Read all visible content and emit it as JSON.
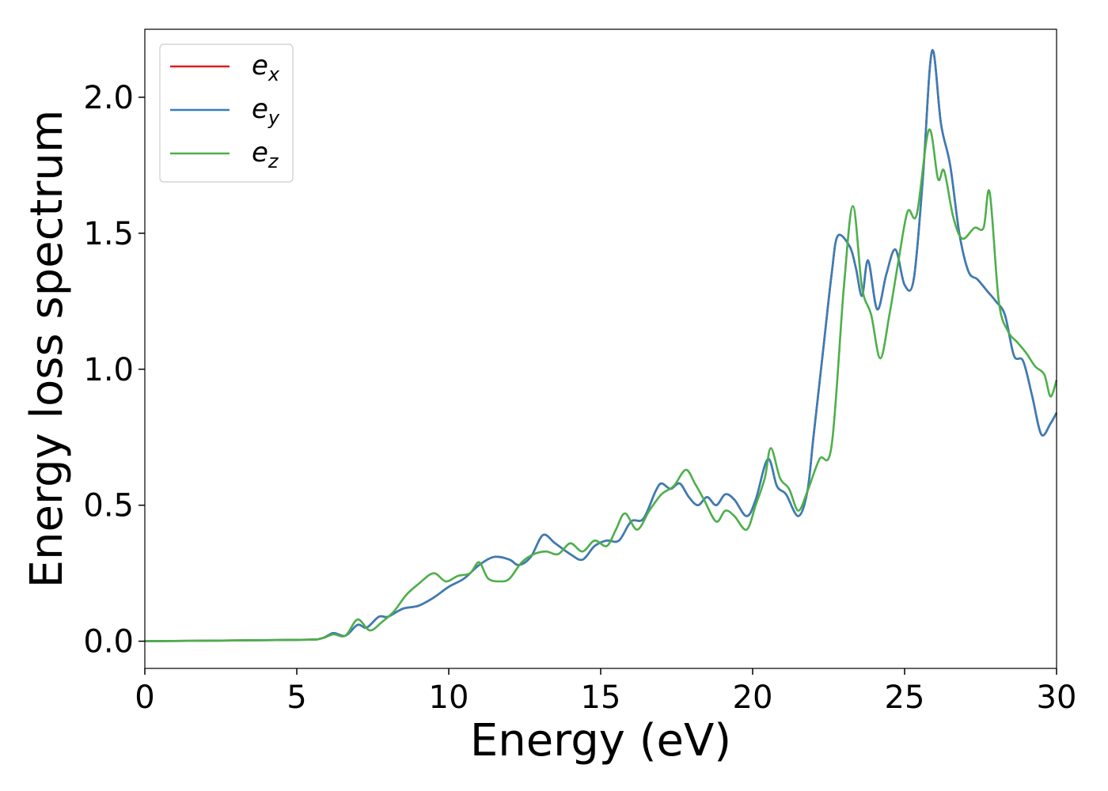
{
  "chart_data": {
    "type": "line",
    "xlabel": "Energy (eV)",
    "ylabel": "Energy loss spectrum",
    "xlim": [
      0,
      30
    ],
    "ylim": [
      -0.1,
      2.25
    ],
    "xticks": [
      "0",
      "5",
      "10",
      "15",
      "20",
      "25",
      "30"
    ],
    "yticks": [
      "0.0",
      "0.5",
      "1.0",
      "1.5",
      "2.0"
    ],
    "grid": false,
    "legend_position": "top-left",
    "series": [
      {
        "name": "e",
        "subscript": "x",
        "color": "#e41a1c",
        "points": [
          [
            0,
            0
          ],
          [
            5,
            0.005
          ],
          [
            5.8,
            0.01
          ],
          [
            6.2,
            0.03
          ],
          [
            6.6,
            0.02
          ],
          [
            7.0,
            0.06
          ],
          [
            7.3,
            0.05
          ],
          [
            7.7,
            0.09
          ],
          [
            8.0,
            0.09
          ],
          [
            8.5,
            0.12
          ],
          [
            9.0,
            0.13
          ],
          [
            9.5,
            0.16
          ],
          [
            10.0,
            0.2
          ],
          [
            10.5,
            0.23
          ],
          [
            11.0,
            0.28
          ],
          [
            11.5,
            0.31
          ],
          [
            12.0,
            0.3
          ],
          [
            12.3,
            0.28
          ],
          [
            12.7,
            0.31
          ],
          [
            13.1,
            0.39
          ],
          [
            13.5,
            0.36
          ],
          [
            14.0,
            0.32
          ],
          [
            14.4,
            0.3
          ],
          [
            14.8,
            0.35
          ],
          [
            15.2,
            0.37
          ],
          [
            15.6,
            0.37
          ],
          [
            16.0,
            0.44
          ],
          [
            16.4,
            0.45
          ],
          [
            16.8,
            0.55
          ],
          [
            17.0,
            0.58
          ],
          [
            17.3,
            0.56
          ],
          [
            17.6,
            0.58
          ],
          [
            17.9,
            0.53
          ],
          [
            18.2,
            0.5
          ],
          [
            18.5,
            0.53
          ],
          [
            18.8,
            0.5
          ],
          [
            19.1,
            0.54
          ],
          [
            19.4,
            0.52
          ],
          [
            19.8,
            0.46
          ],
          [
            20.1,
            0.52
          ],
          [
            20.5,
            0.67
          ],
          [
            20.8,
            0.57
          ],
          [
            21.1,
            0.54
          ],
          [
            21.5,
            0.46
          ],
          [
            21.8,
            0.55
          ],
          [
            22.0,
            0.75
          ],
          [
            22.3,
            1.05
          ],
          [
            22.6,
            1.35
          ],
          [
            22.8,
            1.49
          ],
          [
            23.2,
            1.45
          ],
          [
            23.4,
            1.37
          ],
          [
            23.6,
            1.27
          ],
          [
            23.8,
            1.4
          ],
          [
            24.1,
            1.22
          ],
          [
            24.4,
            1.35
          ],
          [
            24.7,
            1.44
          ],
          [
            25.0,
            1.31
          ],
          [
            25.3,
            1.33
          ],
          [
            25.6,
            1.7
          ],
          [
            25.9,
            2.17
          ],
          [
            26.2,
            1.9
          ],
          [
            26.5,
            1.75
          ],
          [
            26.8,
            1.5
          ],
          [
            27.1,
            1.36
          ],
          [
            27.4,
            1.33
          ],
          [
            27.7,
            1.29
          ],
          [
            28.0,
            1.25
          ],
          [
            28.3,
            1.2
          ],
          [
            28.6,
            1.05
          ],
          [
            28.9,
            1.03
          ],
          [
            29.2,
            0.9
          ],
          [
            29.5,
            0.76
          ],
          [
            29.8,
            0.8
          ],
          [
            30.0,
            0.84
          ]
        ]
      },
      {
        "name": "e",
        "subscript": "y",
        "color": "#377eb8",
        "points": [
          [
            0,
            0
          ],
          [
            5,
            0.005
          ],
          [
            5.8,
            0.01
          ],
          [
            6.2,
            0.03
          ],
          [
            6.6,
            0.02
          ],
          [
            7.0,
            0.06
          ],
          [
            7.3,
            0.05
          ],
          [
            7.7,
            0.09
          ],
          [
            8.0,
            0.09
          ],
          [
            8.5,
            0.12
          ],
          [
            9.0,
            0.13
          ],
          [
            9.5,
            0.16
          ],
          [
            10.0,
            0.2
          ],
          [
            10.5,
            0.23
          ],
          [
            11.0,
            0.28
          ],
          [
            11.5,
            0.31
          ],
          [
            12.0,
            0.3
          ],
          [
            12.3,
            0.28
          ],
          [
            12.7,
            0.31
          ],
          [
            13.1,
            0.39
          ],
          [
            13.5,
            0.36
          ],
          [
            14.0,
            0.32
          ],
          [
            14.4,
            0.3
          ],
          [
            14.8,
            0.35
          ],
          [
            15.2,
            0.37
          ],
          [
            15.6,
            0.37
          ],
          [
            16.0,
            0.44
          ],
          [
            16.4,
            0.45
          ],
          [
            16.8,
            0.55
          ],
          [
            17.0,
            0.58
          ],
          [
            17.3,
            0.56
          ],
          [
            17.6,
            0.58
          ],
          [
            17.9,
            0.53
          ],
          [
            18.2,
            0.5
          ],
          [
            18.5,
            0.53
          ],
          [
            18.8,
            0.5
          ],
          [
            19.1,
            0.54
          ],
          [
            19.4,
            0.52
          ],
          [
            19.8,
            0.46
          ],
          [
            20.1,
            0.52
          ],
          [
            20.5,
            0.67
          ],
          [
            20.8,
            0.57
          ],
          [
            21.1,
            0.54
          ],
          [
            21.5,
            0.46
          ],
          [
            21.8,
            0.55
          ],
          [
            22.0,
            0.75
          ],
          [
            22.3,
            1.05
          ],
          [
            22.6,
            1.35
          ],
          [
            22.8,
            1.49
          ],
          [
            23.2,
            1.45
          ],
          [
            23.4,
            1.37
          ],
          [
            23.6,
            1.27
          ],
          [
            23.8,
            1.4
          ],
          [
            24.1,
            1.22
          ],
          [
            24.4,
            1.35
          ],
          [
            24.7,
            1.44
          ],
          [
            25.0,
            1.31
          ],
          [
            25.3,
            1.33
          ],
          [
            25.6,
            1.7
          ],
          [
            25.9,
            2.17
          ],
          [
            26.2,
            1.9
          ],
          [
            26.5,
            1.75
          ],
          [
            26.8,
            1.5
          ],
          [
            27.1,
            1.36
          ],
          [
            27.4,
            1.33
          ],
          [
            27.7,
            1.29
          ],
          [
            28.0,
            1.25
          ],
          [
            28.3,
            1.2
          ],
          [
            28.6,
            1.05
          ],
          [
            28.9,
            1.03
          ],
          [
            29.2,
            0.9
          ],
          [
            29.5,
            0.76
          ],
          [
            29.8,
            0.8
          ],
          [
            30.0,
            0.84
          ]
        ]
      },
      {
        "name": "e",
        "subscript": "z",
        "color": "#4daf4a",
        "points": [
          [
            0,
            0
          ],
          [
            5,
            0.005
          ],
          [
            5.8,
            0.01
          ],
          [
            6.2,
            0.025
          ],
          [
            6.6,
            0.02
          ],
          [
            7.0,
            0.08
          ],
          [
            7.4,
            0.04
          ],
          [
            7.8,
            0.07
          ],
          [
            8.2,
            0.11
          ],
          [
            8.6,
            0.17
          ],
          [
            9.0,
            0.21
          ],
          [
            9.5,
            0.25
          ],
          [
            9.9,
            0.22
          ],
          [
            10.3,
            0.24
          ],
          [
            10.7,
            0.25
          ],
          [
            11.0,
            0.29
          ],
          [
            11.3,
            0.23
          ],
          [
            11.7,
            0.22
          ],
          [
            12.0,
            0.23
          ],
          [
            12.4,
            0.29
          ],
          [
            12.8,
            0.32
          ],
          [
            13.2,
            0.33
          ],
          [
            13.6,
            0.32
          ],
          [
            14.0,
            0.36
          ],
          [
            14.4,
            0.33
          ],
          [
            14.8,
            0.37
          ],
          [
            15.2,
            0.35
          ],
          [
            15.5,
            0.41
          ],
          [
            15.8,
            0.47
          ],
          [
            16.2,
            0.41
          ],
          [
            16.6,
            0.48
          ],
          [
            17.0,
            0.54
          ],
          [
            17.4,
            0.57
          ],
          [
            17.8,
            0.63
          ],
          [
            18.1,
            0.58
          ],
          [
            18.4,
            0.52
          ],
          [
            18.8,
            0.44
          ],
          [
            19.1,
            0.48
          ],
          [
            19.4,
            0.46
          ],
          [
            19.8,
            0.41
          ],
          [
            20.1,
            0.5
          ],
          [
            20.4,
            0.6
          ],
          [
            20.6,
            0.71
          ],
          [
            20.9,
            0.6
          ],
          [
            21.2,
            0.56
          ],
          [
            21.5,
            0.48
          ],
          [
            21.8,
            0.55
          ],
          [
            22.2,
            0.67
          ],
          [
            22.6,
            0.72
          ],
          [
            23.0,
            1.3
          ],
          [
            23.3,
            1.6
          ],
          [
            23.6,
            1.3
          ],
          [
            23.9,
            1.2
          ],
          [
            24.2,
            1.04
          ],
          [
            24.5,
            1.2
          ],
          [
            24.8,
            1.4
          ],
          [
            25.1,
            1.58
          ],
          [
            25.4,
            1.57
          ],
          [
            25.8,
            1.88
          ],
          [
            26.1,
            1.7
          ],
          [
            26.3,
            1.73
          ],
          [
            26.6,
            1.56
          ],
          [
            26.9,
            1.48
          ],
          [
            27.3,
            1.52
          ],
          [
            27.6,
            1.52
          ],
          [
            27.8,
            1.65
          ],
          [
            28.1,
            1.25
          ],
          [
            28.4,
            1.14
          ],
          [
            28.7,
            1.1
          ],
          [
            29.0,
            1.06
          ],
          [
            29.3,
            1.01
          ],
          [
            29.6,
            0.98
          ],
          [
            29.8,
            0.9
          ],
          [
            30.0,
            0.96
          ]
        ]
      }
    ]
  }
}
